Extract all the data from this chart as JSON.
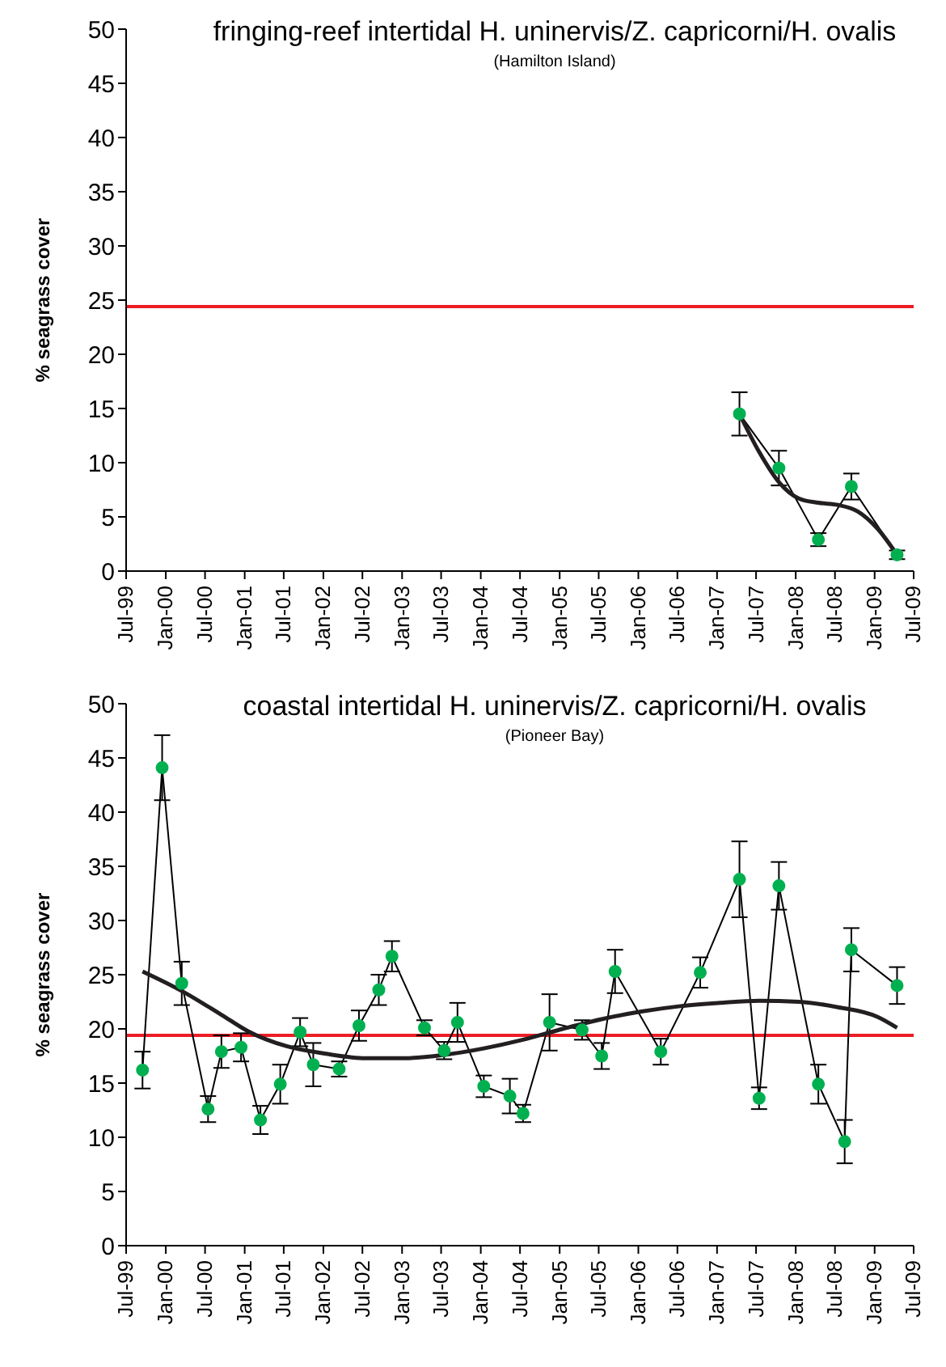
{
  "chart_data": [
    {
      "type": "line",
      "title": "fringing-reef intertidal H. uninervis/Z. capricorni/H. ovalis",
      "subtitle": "(Hamilton Island)",
      "ylabel": "% seagrass cover",
      "xlim": [
        "1999-07-01",
        "2009-07-01"
      ],
      "xticks": [
        {
          "value": "1999-07-01",
          "label": "Jul-99"
        },
        {
          "value": "2000-01-01",
          "label": "Jan-00"
        },
        {
          "value": "2000-07-01",
          "label": "Jul-00"
        },
        {
          "value": "2001-01-01",
          "label": "Jan-01"
        },
        {
          "value": "2001-07-01",
          "label": "Jul-01"
        },
        {
          "value": "2002-01-01",
          "label": "Jan-02"
        },
        {
          "value": "2002-07-01",
          "label": "Jul-02"
        },
        {
          "value": "2003-01-01",
          "label": "Jan-03"
        },
        {
          "value": "2003-07-01",
          "label": "Jul-03"
        },
        {
          "value": "2004-01-01",
          "label": "Jan-04"
        },
        {
          "value": "2004-07-01",
          "label": "Jul-04"
        },
        {
          "value": "2005-01-01",
          "label": "Jan-05"
        },
        {
          "value": "2005-07-01",
          "label": "Jul-05"
        },
        {
          "value": "2006-01-01",
          "label": "Jan-06"
        },
        {
          "value": "2006-07-01",
          "label": "Jul-06"
        },
        {
          "value": "2007-01-01",
          "label": "Jan-07"
        },
        {
          "value": "2007-07-01",
          "label": "Jul-07"
        },
        {
          "value": "2008-01-01",
          "label": "Jan-08"
        },
        {
          "value": "2008-07-01",
          "label": "Jul-08"
        },
        {
          "value": "2009-01-01",
          "label": "Jan-09"
        },
        {
          "value": "2009-07-01",
          "label": "Jul-09"
        }
      ],
      "ylim": [
        0,
        50
      ],
      "yticks": [
        0,
        5,
        10,
        15,
        20,
        25,
        30,
        35,
        40,
        45,
        50
      ],
      "marker": "circle",
      "line_style": "solid",
      "series": [
        {
          "color": "#00b050",
          "x": [
            "2007-04-15",
            "2007-10-15",
            "2008-04-15",
            "2008-09-15",
            "2009-04-15"
          ],
          "values": [
            14.5,
            9.5,
            2.9,
            7.8,
            1.5
          ],
          "errors": [
            2,
            1.6,
            0.6,
            1.2,
            0.4
          ]
        },
        {
          "type": "line",
          "marker": "none",
          "color": "#231f20",
          "x": [
            "2007-04-15",
            "2007-07-15",
            "2007-10-15",
            "2008-01-15",
            "2008-04-15",
            "2008-07-15",
            "2008-10-15",
            "2009-01-15",
            "2009-04-15"
          ],
          "values": [
            14.5,
            11.0,
            8.2,
            6.7,
            6.3,
            6.1,
            5.5,
            3.9,
            1.5
          ]
        }
      ],
      "ref_lines": [
        {
          "axis": "y",
          "value": 24.4,
          "color": "#ed1c24"
        }
      ]
    },
    {
      "type": "line",
      "title": "coastal intertidal H. uninervis/Z. capricorni/H. ovalis",
      "subtitle": "(Pioneer Bay)",
      "ylabel": "% seagrass cover",
      "xlim": [
        "1999-07-01",
        "2009-07-01"
      ],
      "xticks": [
        {
          "value": "1999-07-01",
          "label": "Jul-99"
        },
        {
          "value": "2000-01-01",
          "label": "Jan-00"
        },
        {
          "value": "2000-07-01",
          "label": "Jul-00"
        },
        {
          "value": "2001-01-01",
          "label": "Jan-01"
        },
        {
          "value": "2001-07-01",
          "label": "Jul-01"
        },
        {
          "value": "2002-01-01",
          "label": "Jan-02"
        },
        {
          "value": "2002-07-01",
          "label": "Jul-02"
        },
        {
          "value": "2003-01-01",
          "label": "Jan-03"
        },
        {
          "value": "2003-07-01",
          "label": "Jul-03"
        },
        {
          "value": "2004-01-01",
          "label": "Jan-04"
        },
        {
          "value": "2004-07-01",
          "label": "Jul-04"
        },
        {
          "value": "2005-01-01",
          "label": "Jan-05"
        },
        {
          "value": "2005-07-01",
          "label": "Jul-05"
        },
        {
          "value": "2006-01-01",
          "label": "Jan-06"
        },
        {
          "value": "2006-07-01",
          "label": "Jul-06"
        },
        {
          "value": "2007-01-01",
          "label": "Jan-07"
        },
        {
          "value": "2007-07-01",
          "label": "Jul-07"
        },
        {
          "value": "2008-01-01",
          "label": "Jan-08"
        },
        {
          "value": "2008-07-01",
          "label": "Jul-08"
        },
        {
          "value": "2009-01-01",
          "label": "Jan-09"
        },
        {
          "value": "2009-07-01",
          "label": "Jul-09"
        }
      ],
      "ylim": [
        0,
        50
      ],
      "yticks": [
        0,
        5,
        10,
        15,
        20,
        25,
        30,
        35,
        40,
        45,
        50
      ],
      "marker": "circle",
      "line_style": "solid",
      "series": [
        {
          "color": "#00b050",
          "x": [
            "1999-09-15",
            "1999-12-15",
            "2000-03-15",
            "2000-07-15",
            "2000-09-15",
            "2000-12-15",
            "2001-03-15",
            "2001-06-15",
            "2001-09-15",
            "2001-11-15",
            "2002-03-15",
            "2002-06-15",
            "2002-09-15",
            "2002-11-15",
            "2003-04-15",
            "2003-07-15",
            "2003-09-15",
            "2004-01-15",
            "2004-05-15",
            "2004-07-15",
            "2004-11-15",
            "2005-04-15",
            "2005-07-15",
            "2005-09-15",
            "2006-04-15",
            "2006-10-15",
            "2007-04-15",
            "2007-07-15",
            "2007-10-15",
            "2008-04-15",
            "2008-08-15",
            "2008-09-15",
            "2009-04-15"
          ],
          "values": [
            16.2,
            44.1,
            24.2,
            12.6,
            17.9,
            18.3,
            11.6,
            14.9,
            19.7,
            16.7,
            16.3,
            20.3,
            23.6,
            26.7,
            20.1,
            18.0,
            20.6,
            14.7,
            13.8,
            12.2,
            20.6,
            19.9,
            17.5,
            25.3,
            17.9,
            25.2,
            33.8,
            13.6,
            33.2,
            14.9,
            9.6,
            27.3,
            24.0
          ],
          "errors": [
            1.7,
            3,
            2,
            1.2,
            1.5,
            1.3,
            1.3,
            1.8,
            1.3,
            2,
            0.7,
            1.4,
            1.4,
            1.4,
            0.7,
            0.8,
            1.8,
            1,
            1.6,
            0.8,
            2.6,
            0.9,
            1.2,
            2,
            1.2,
            1.4,
            3.5,
            1,
            2.2,
            1.8,
            2,
            2,
            1.7
          ]
        },
        {
          "type": "line",
          "marker": "none",
          "color": "#231f20",
          "x": [
            "1999-09-15",
            "2000-03-15",
            "2000-09-15",
            "2001-01-15",
            "2001-07-15",
            "2002-01-15",
            "2002-07-15",
            "2003-01-15",
            "2003-07-15",
            "2004-01-15",
            "2004-07-15",
            "2005-01-15",
            "2005-07-15",
            "2006-01-15",
            "2006-07-15",
            "2007-01-15",
            "2007-07-15",
            "2008-01-15",
            "2008-07-15",
            "2009-01-15",
            "2009-04-15"
          ],
          "values": [
            25.3,
            23.5,
            21.3,
            19.8,
            18.4,
            17.7,
            17.3,
            17.3,
            17.6,
            18.2,
            19.0,
            20.0,
            20.9,
            21.6,
            22.1,
            22.4,
            22.6,
            22.5,
            22.0,
            21.1,
            20.1
          ]
        }
      ],
      "ref_lines": [
        {
          "axis": "y",
          "value": 19.4,
          "color": "#ed1c24"
        }
      ]
    }
  ]
}
